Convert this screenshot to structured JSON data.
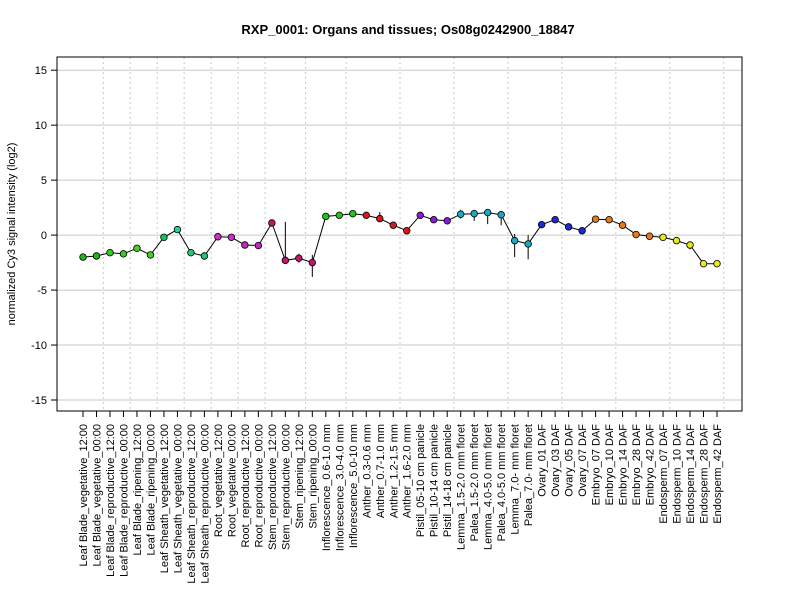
{
  "chart_data": {
    "type": "line",
    "title": "RXP_0001: Organs and tissues; Os08g0242900_18847",
    "xlabel": "",
    "ylabel": "normalized Cy3 signal intensity (log2)",
    "ylim": [
      -16,
      16.2
    ],
    "yticks": [
      -15,
      -10,
      -5,
      0,
      5,
      10,
      15
    ],
    "grid": true,
    "group_separators_after": [
      1,
      3,
      5,
      7,
      9,
      11,
      13,
      16,
      19,
      23,
      27,
      31,
      35,
      39,
      43,
      47
    ],
    "categories": [
      "Leaf Blade_vegetative_12:00",
      "Leaf Blade_vegetative_00:00",
      "Leaf Blade_reproductive_12:00",
      "Leaf Blade_reproductive_00:00",
      "Leaf Blade_ripening_12:00",
      "Leaf Blade_ripening_00:00",
      "Leaf Sheath_vegetative_12:00",
      "Leaf Sheath_vegetative_00:00",
      "Leaf Sheath_reproductive_12:00",
      "Leaf Sheath_reproductive_00:00",
      "Root_vegetative_12:00",
      "Root_vegetative_00:00",
      "Root_reproductive_12:00",
      "Root_reproductive_00:00",
      "Stem_reproductive_12:00",
      "Stem_reproductive_00:00",
      "Stem_ripening_12:00",
      "Stem_ripening_00:00",
      "Inflorescence_0.6-1.0 mm",
      "Inflorescence_3.0-4.0 mm",
      "Inflorescence_5.0-10 mm",
      "Anther_0.3-0.6 mm",
      "Anther_0.7-1.0 mm",
      "Anther_1.2-1.5 mm",
      "Anther_1.6-2.0 mm",
      "Pistil_05-10 cm panicle",
      "Pistil_10-14 cm panicle",
      "Pistil_14-18 cm panicle",
      "Lemma_1.5-2.0 mm floret",
      "Palea_1.5-2.0 mm floret",
      "Lemma_4.0-5.0 mm floret",
      "Palea_4.0-5.0 mm floret",
      "Lemma_7.0- mm floret",
      "Palea_7.0- mm floret",
      "Ovary_01 DAF",
      "Ovary_03 DAF",
      "Ovary_05 DAF",
      "Ovary_07 DAF",
      "Embryo_07 DAF",
      "Embryo_10 DAF",
      "Embryo_14 DAF",
      "Embryo_28 DAF",
      "Embryo_42 DAF",
      "Endosperm_07 DAF",
      "Endosperm_10 DAF",
      "Endosperm_14 DAF",
      "Endosperm_28 DAF",
      "Endosperm_42 DAF"
    ],
    "values": [
      -2.0,
      -1.9,
      -1.6,
      -1.7,
      -1.2,
      -1.8,
      -0.2,
      0.5,
      -1.6,
      -1.9,
      -0.15,
      -0.2,
      -0.9,
      -0.95,
      1.1,
      -2.3,
      -2.1,
      -2.5,
      1.7,
      1.8,
      1.95,
      1.8,
      1.5,
      0.9,
      0.4,
      1.8,
      1.4,
      1.3,
      1.9,
      1.95,
      2.05,
      1.85,
      -0.5,
      -0.8,
      0.95,
      1.4,
      0.75,
      0.4,
      1.45,
      1.4,
      0.9,
      0.05,
      -0.1,
      -0.2,
      -0.5,
      -0.9,
      -2.6,
      -2.6
    ],
    "error_high": [
      -1.8,
      -1.6,
      -1.4,
      -1.5,
      -1.0,
      -1.5,
      0.0,
      0.6,
      -1.4,
      -1.6,
      0.0,
      0.0,
      -0.8,
      -0.8,
      1.2,
      1.2,
      -1.7,
      -1.8,
      1.8,
      1.9,
      2.1,
      2.0,
      2.1,
      1.0,
      0.5,
      1.9,
      1.5,
      1.4,
      2.3,
      2.3,
      2.2,
      2.1,
      0.1,
      0.0,
      1.1,
      1.55,
      0.9,
      0.5,
      1.6,
      1.55,
      1.3,
      0.2,
      0.05,
      0.0,
      -0.3,
      -0.6,
      -2.5,
      -2.5
    ],
    "error_low": [
      -2.2,
      -2.2,
      -1.8,
      -1.9,
      -1.4,
      -2.0,
      -0.5,
      0.3,
      -1.8,
      -2.2,
      -0.3,
      -0.5,
      -1.0,
      -1.1,
      1.0,
      -2.5,
      -2.5,
      -3.8,
      1.6,
      1.7,
      1.8,
      1.6,
      1.2,
      0.7,
      0.3,
      1.7,
      1.3,
      1.2,
      1.5,
      1.3,
      1.0,
      0.9,
      -2.0,
      -2.2,
      0.8,
      1.2,
      0.6,
      0.3,
      1.3,
      1.2,
      0.6,
      -0.1,
      -0.25,
      -0.4,
      -0.8,
      -1.3,
      -2.7,
      -2.7
    ],
    "colors": [
      "#22b31a",
      "#22b31a",
      "#33cc22",
      "#33cc22",
      "#44d02a",
      "#44d02a",
      "#11c45a",
      "#22d49a",
      "#22c47a",
      "#22c47a",
      "#d22ad2",
      "#d22ad2",
      "#c02ac0",
      "#c02ac0",
      "#c0186a",
      "#c0186a",
      "#c0186a",
      "#c0186a",
      "#22c41a",
      "#22c41a",
      "#22c41a",
      "#d41a1a",
      "#d41a1a",
      "#d41a1a",
      "#d41a1a",
      "#8a1ad4",
      "#8a1ad4",
      "#8a1ad4",
      "#1aa8c4",
      "#1aa8c4",
      "#1aa8c4",
      "#1aa8c4",
      "#1aa8c4",
      "#1aa8c4",
      "#1a2ad4",
      "#1a2ad4",
      "#1a2ad4",
      "#1a2ad4",
      "#e87a1a",
      "#e87a1a",
      "#e87a1a",
      "#e87a1a",
      "#e87a1a",
      "#e8e81a",
      "#e8e81a",
      "#e8e81a",
      "#e8e81a",
      "#e8e81a"
    ]
  }
}
